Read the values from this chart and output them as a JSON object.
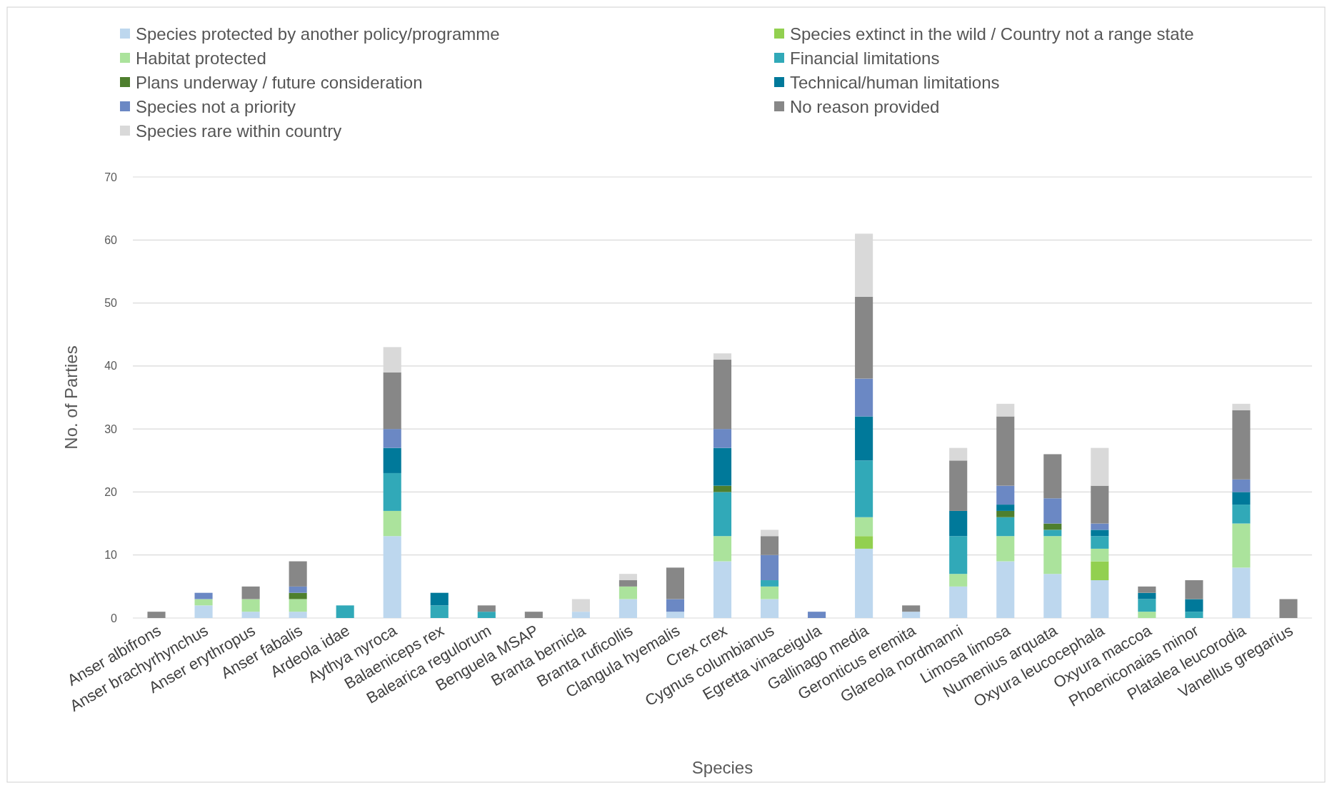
{
  "chart_data": {
    "type": "bar",
    "stacked": true,
    "xlabel": "Species",
    "ylabel": "No. of Parties",
    "categories": [
      "Anser albifrons",
      "Anser brachyrhynchus",
      "Anser erythropus",
      "Anser fabalis",
      "Ardeola idae",
      "Aythya nyroca",
      "Balaeniceps rex",
      "Balearica regulorum",
      "Benguela MSAP",
      "Branta bernicla",
      "Branta ruficollis",
      "Clangula hyemalis",
      "Crex crex",
      "Cygnus columbianus",
      "Egretta vinaceigula",
      "Gallinago media",
      "Geronticus eremita",
      "Glareola nordmanni",
      "Limosa limosa",
      "Numenius arquata",
      "Oxyura leucocephala",
      "Oxyura maccoa",
      "Phoeniconaias minor",
      "Platalea leucorodia",
      "Vanellus gregarius"
    ],
    "series": [
      {
        "name": "Species protected by another policy/programme",
        "color": "#bdd7ee",
        "values": [
          0,
          2,
          1,
          1,
          0,
          13,
          0,
          0,
          0,
          1,
          3,
          1,
          9,
          3,
          0,
          11,
          1,
          5,
          9,
          7,
          6,
          0,
          0,
          8,
          0
        ]
      },
      {
        "name": "Species extinct in the wild / Country not a range state",
        "color": "#92d050",
        "values": [
          0,
          0,
          0,
          0,
          0,
          0,
          0,
          0,
          0,
          0,
          0,
          0,
          0,
          0,
          0,
          2,
          0,
          0,
          0,
          0,
          3,
          0,
          0,
          0,
          0
        ]
      },
      {
        "name": "Habitat protected",
        "color": "#abe39c",
        "values": [
          0,
          1,
          2,
          2,
          0,
          4,
          0,
          0,
          0,
          0,
          2,
          0,
          4,
          2,
          0,
          3,
          0,
          2,
          4,
          6,
          2,
          1,
          0,
          7,
          0
        ]
      },
      {
        "name": "Financial limitations",
        "color": "#31a9b8",
        "values": [
          0,
          0,
          0,
          0,
          2,
          6,
          2,
          1,
          0,
          0,
          0,
          0,
          7,
          1,
          0,
          9,
          0,
          6,
          3,
          1,
          2,
          2,
          1,
          3,
          0
        ]
      },
      {
        "name": "Plans underway / future consideration",
        "color": "#4e7f2e",
        "values": [
          0,
          0,
          0,
          1,
          0,
          0,
          0,
          0,
          0,
          0,
          0,
          0,
          1,
          0,
          0,
          0,
          0,
          0,
          1,
          1,
          0,
          0,
          0,
          0,
          0
        ]
      },
      {
        "name": "Technical/human limitations",
        "color": "#00799a",
        "values": [
          0,
          0,
          0,
          0,
          0,
          4,
          2,
          0,
          0,
          0,
          0,
          0,
          6,
          0,
          0,
          7,
          0,
          4,
          1,
          0,
          1,
          1,
          2,
          2,
          0
        ]
      },
      {
        "name": "Species not a priority",
        "color": "#6b88c4",
        "values": [
          0,
          1,
          0,
          1,
          0,
          3,
          0,
          0,
          0,
          0,
          0,
          2,
          3,
          4,
          1,
          6,
          0,
          0,
          3,
          4,
          1,
          0,
          0,
          2,
          0
        ]
      },
      {
        "name": "No reason provided",
        "color": "#878787",
        "values": [
          1,
          0,
          2,
          4,
          0,
          9,
          0,
          1,
          1,
          0,
          1,
          5,
          11,
          3,
          0,
          13,
          1,
          8,
          11,
          7,
          6,
          1,
          3,
          11,
          3
        ]
      },
      {
        "name": "Species rare within country",
        "color": "#d9d9d9",
        "values": [
          0,
          0,
          0,
          0,
          0,
          4,
          0,
          0,
          0,
          2,
          1,
          0,
          1,
          1,
          0,
          10,
          0,
          2,
          2,
          0,
          6,
          0,
          0,
          1,
          0
        ]
      }
    ],
    "ylim": [
      0,
      70
    ],
    "yticks": [
      0,
      10,
      20,
      30,
      40,
      50,
      60,
      70
    ],
    "grid": "y",
    "legend": "top"
  }
}
